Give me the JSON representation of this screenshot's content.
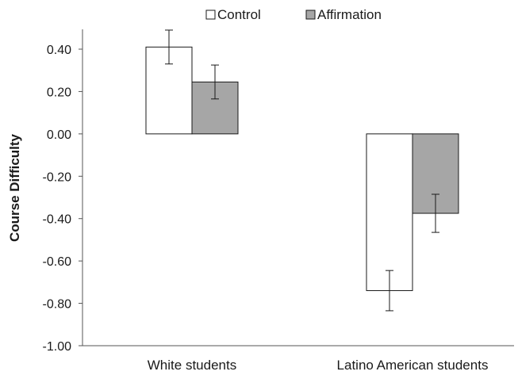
{
  "chart_data": {
    "type": "bar",
    "categories": [
      "White students",
      "Latino American students"
    ],
    "series": [
      {
        "name": "Control",
        "values": [
          0.41,
          -0.74
        ],
        "errors": [
          0.08,
          0.095
        ],
        "color": "#ffffff"
      },
      {
        "name": "Affirmation",
        "values": [
          0.245,
          -0.375
        ],
        "errors": [
          0.08,
          0.09
        ],
        "color": "#a6a6a6"
      }
    ],
    "ylabel": "Course Difficulty",
    "xlabel": "",
    "ylim": [
      -1.0,
      0.4
    ],
    "yticks": [
      "0.40",
      "0.20",
      "0.00",
      "-0.20",
      "-0.40",
      "-0.60",
      "-0.80",
      "-1.00"
    ],
    "ytick_values": [
      0.4,
      0.2,
      0.0,
      -0.2,
      -0.4,
      -0.6,
      -0.8,
      -1.0
    ],
    "grid": false,
    "legend_position": "top"
  }
}
